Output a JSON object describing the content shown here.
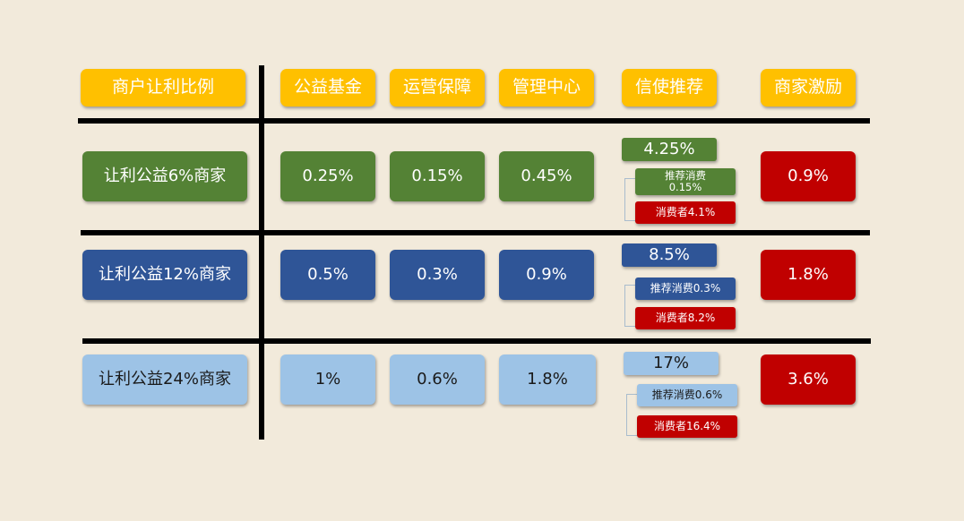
{
  "header": {
    "col0": "商户让利比例",
    "col1": "公益基金",
    "col2": "运营保障",
    "col3": "管理中心",
    "col4": "信使推荐",
    "col5": "商家激励"
  },
  "rows": [
    {
      "label": "让利公益6%商家",
      "fund": "0.25%",
      "ops": "0.15%",
      "mgmt": "0.45%",
      "referral_total": "4.25%",
      "referral_consumption": "推荐消费\n0.15%",
      "consumer": "消费者4.1%",
      "incentive": "0.9%"
    },
    {
      "label": "让利公益12%商家",
      "fund": "0.5%",
      "ops": "0.3%",
      "mgmt": "0.9%",
      "referral_total": "8.5%",
      "referral_consumption": "推荐消费0.3%",
      "consumer": "消费者8.2%",
      "incentive": "1.8%"
    },
    {
      "label": "让利公益24%商家",
      "fund": "1%",
      "ops": "0.6%",
      "mgmt": "1.8%",
      "referral_total": "17%",
      "referral_consumption": "推荐消费0.6%",
      "consumer": "消费者16.4%",
      "incentive": "3.6%"
    }
  ],
  "colors": {
    "background": "#f2eadb",
    "header": "#ffc000",
    "row1": "#548235",
    "row2": "#2f5597",
    "row3": "#9dc3e6",
    "red": "#c00000"
  }
}
